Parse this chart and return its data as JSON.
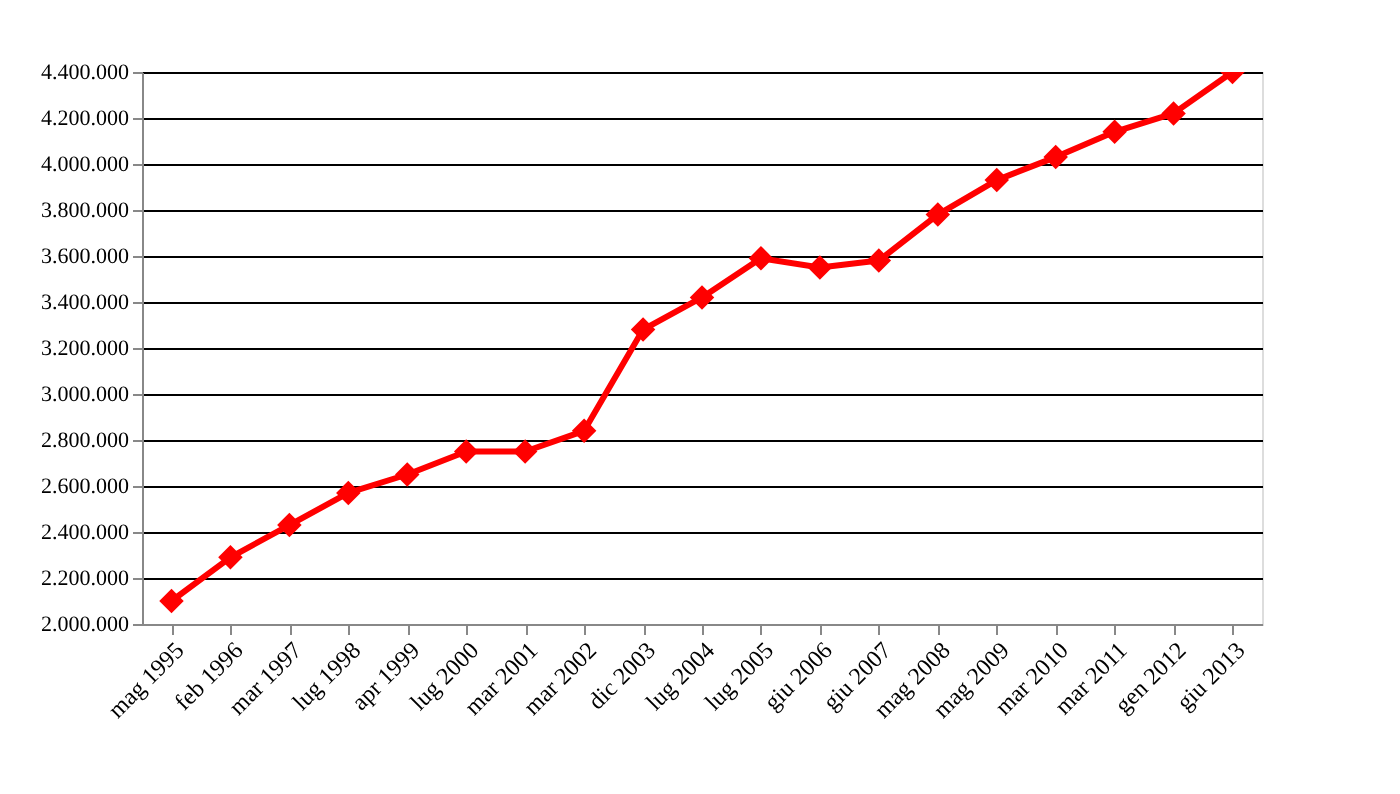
{
  "chart_data": {
    "type": "line",
    "categories": [
      "mag 1995",
      "feb 1996",
      "mar 1997",
      "lug 1998",
      "apr 1999",
      "lug 2000",
      "mar 2001",
      "mar 2002",
      "dic 2003",
      "lug 2004",
      "lug 2005",
      "giu 2006",
      "giu 2007",
      "mag 2008",
      "mag 2009",
      "mar 2010",
      "mar 2011",
      "gen 2012",
      "giu 2013"
    ],
    "series": [
      {
        "color": "#ff0000",
        "values": [
          2100000,
          2290000,
          2430000,
          2570000,
          2650000,
          2750000,
          2750000,
          2840000,
          3280000,
          3420000,
          3590000,
          3550000,
          3580000,
          3780000,
          3930000,
          4030000,
          4140000,
          4220000,
          4400000
        ]
      }
    ],
    "ylim": [
      2000000,
      4400000
    ],
    "yticks": [
      {
        "value": 2000000,
        "label": "2.000.000"
      },
      {
        "value": 2200000,
        "label": "2.200.000"
      },
      {
        "value": 2400000,
        "label": "2.400.000"
      },
      {
        "value": 2600000,
        "label": "2.600.000"
      },
      {
        "value": 2800000,
        "label": "2.800.000"
      },
      {
        "value": 3000000,
        "label": "3.000.000"
      },
      {
        "value": 3200000,
        "label": "3.200.000"
      },
      {
        "value": 3400000,
        "label": "3.400.000"
      },
      {
        "value": 3600000,
        "label": "3.600.000"
      },
      {
        "value": 3800000,
        "label": "3.800.000"
      },
      {
        "value": 4000000,
        "label": "4.000.000"
      },
      {
        "value": 4200000,
        "label": "4.200.000"
      },
      {
        "value": 4400000,
        "label": "4.400.000"
      }
    ],
    "grid": "y",
    "marker": "diamond",
    "line_style": "solid"
  }
}
